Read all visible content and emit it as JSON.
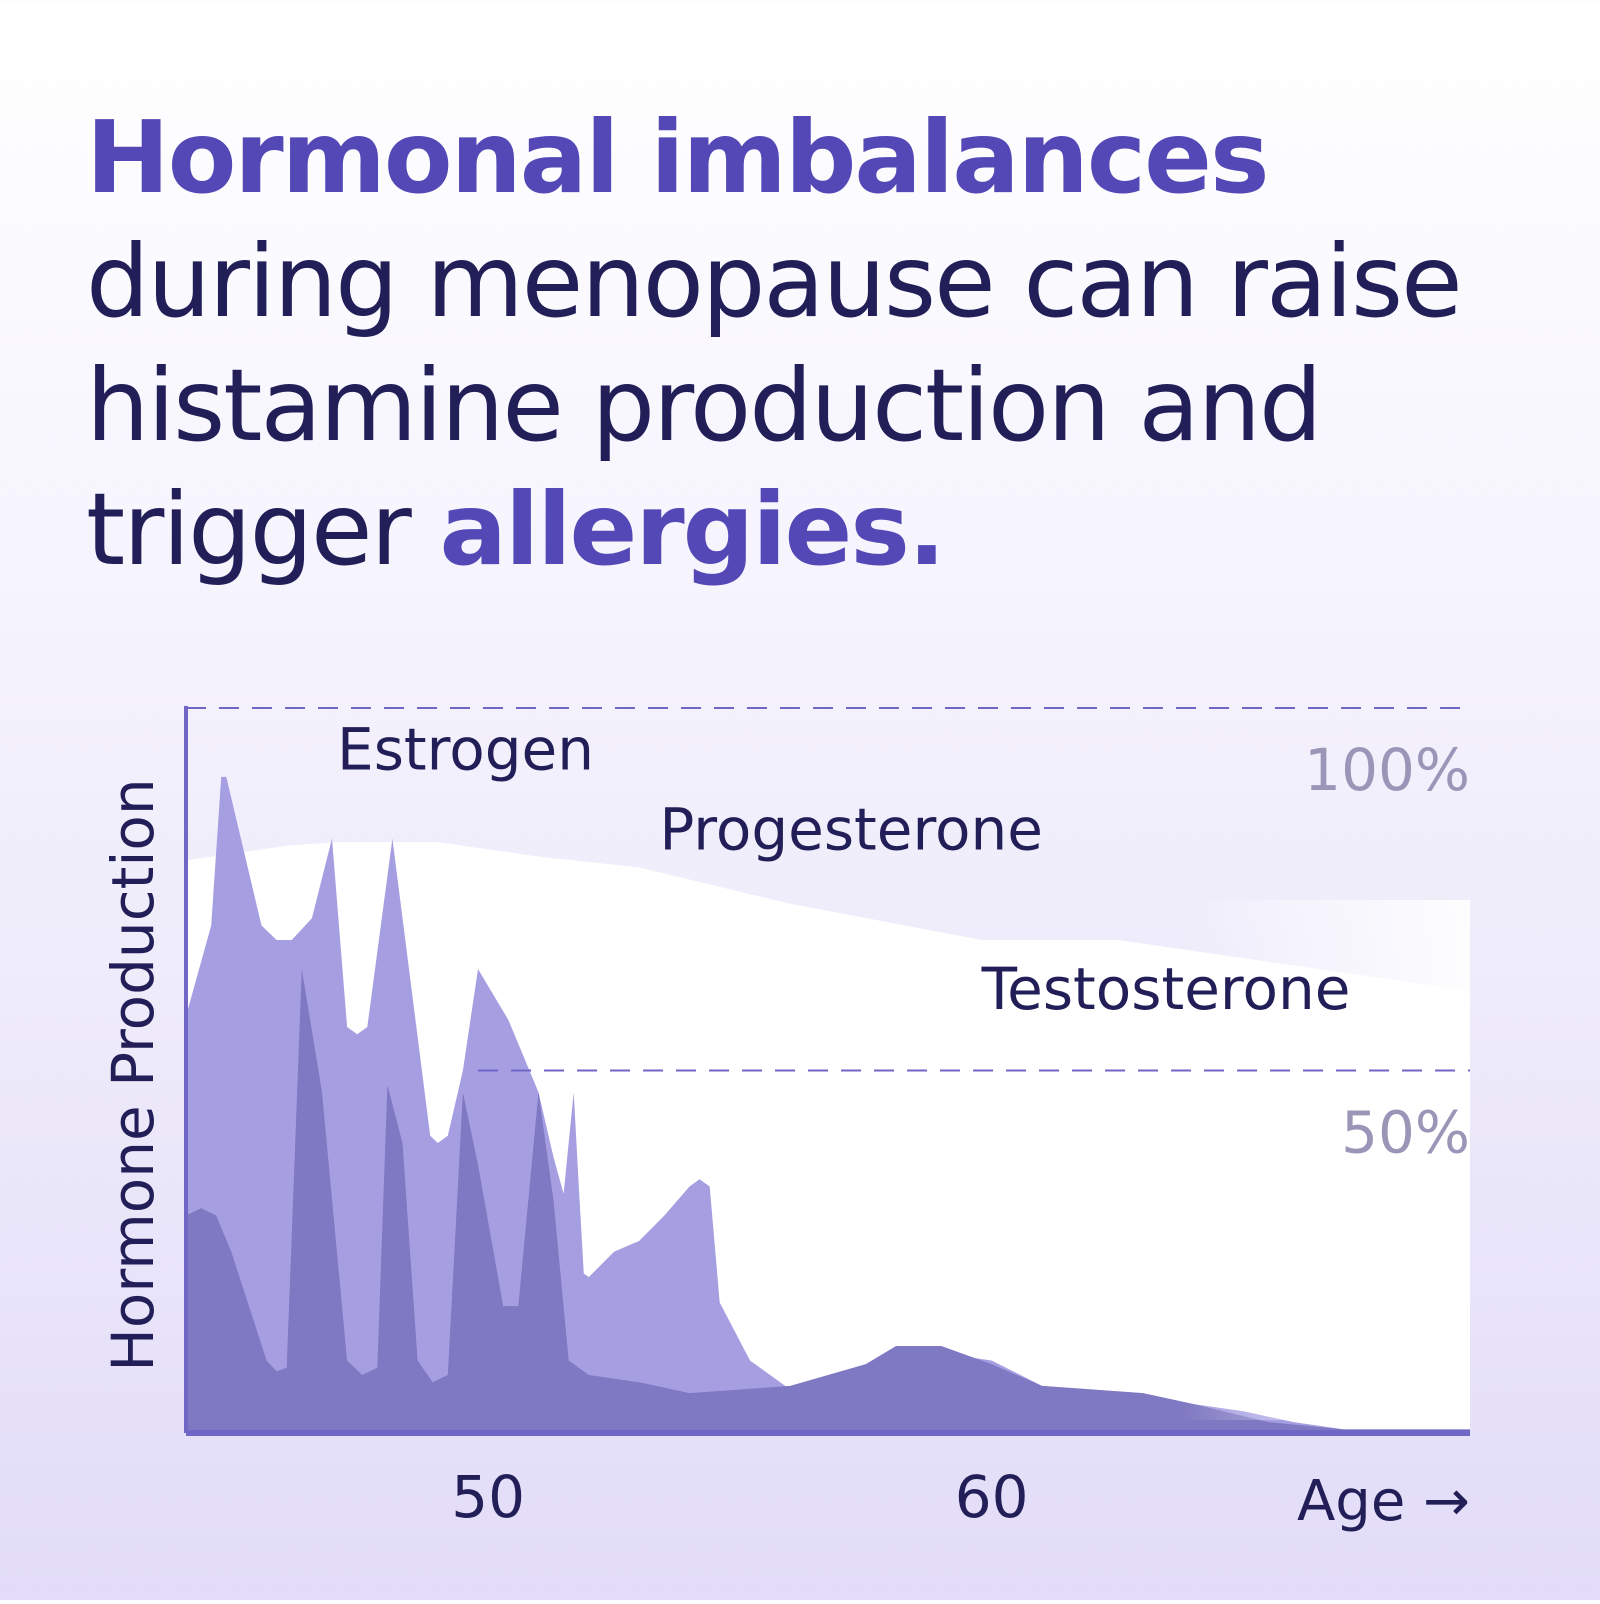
{
  "headline": {
    "line1": "Hormonal imbalances",
    "line2": "during menopause can raise",
    "line3": "histamine production and",
    "line4_prefix": "trigger ",
    "line4_accent": "allergies."
  },
  "colors": {
    "accent": "#5448b6",
    "dark_text": "#221f58",
    "progesterone_fill": "#ffffff",
    "estrogen_fill": "#a59fe2",
    "testosterone_fill": "#7f78c2",
    "axis": "#6f66c6",
    "reference_label": "#9b96b8"
  },
  "chart_data": {
    "type": "area",
    "xlabel": "Age →",
    "ylabel": "Hormone Production",
    "x_ticks": [
      {
        "x": 50,
        "label": "50"
      },
      {
        "x": 60,
        "label": "60"
      }
    ],
    "xlim": [
      44,
      69.5
    ],
    "ylim": [
      0,
      100
    ],
    "reference_lines": [
      {
        "y": 100,
        "label": "100%",
        "style": "dashed"
      },
      {
        "y": 50,
        "label": "50%",
        "style": "dashed"
      }
    ],
    "grid": false,
    "series": [
      {
        "name": "Progesterone",
        "label_at": [
          53.4,
          80.5
        ],
        "points": [
          [
            44,
            79
          ],
          [
            46,
            81
          ],
          [
            47,
            81.5
          ],
          [
            49,
            81.5
          ],
          [
            51,
            79.5
          ],
          [
            53,
            78
          ],
          [
            56,
            73
          ],
          [
            59.8,
            68
          ],
          [
            62.5,
            68
          ],
          [
            65,
            65.5
          ],
          [
            69.5,
            61
          ],
          [
            69.5,
            0
          ],
          [
            44,
            0
          ]
        ]
      },
      {
        "name": "Estrogen",
        "label_at": [
          47,
          91.5
        ],
        "points": [
          [
            44,
            57.5
          ],
          [
            44.5,
            70
          ],
          [
            44.7,
            90.5
          ],
          [
            44.8,
            90.5
          ],
          [
            45.5,
            70
          ],
          [
            45.8,
            68
          ],
          [
            46.1,
            68
          ],
          [
            46.5,
            71
          ],
          [
            46.9,
            82
          ],
          [
            47.2,
            56
          ],
          [
            47.4,
            55
          ],
          [
            47.6,
            56
          ],
          [
            48.1,
            82
          ],
          [
            48.85,
            41
          ],
          [
            49,
            40
          ],
          [
            49.2,
            41
          ],
          [
            49.5,
            50
          ],
          [
            49.8,
            64
          ],
          [
            50.4,
            57
          ],
          [
            51,
            47
          ],
          [
            51.3,
            38
          ],
          [
            51.5,
            33
          ],
          [
            51.7,
            47
          ],
          [
            51.8,
            34
          ],
          [
            51.9,
            22
          ],
          [
            52,
            21.5
          ],
          [
            52.5,
            25
          ],
          [
            53,
            26.5
          ],
          [
            53.5,
            30
          ],
          [
            54,
            34
          ],
          [
            54.2,
            35
          ],
          [
            54.4,
            34
          ],
          [
            54.6,
            18
          ],
          [
            55.2,
            10
          ],
          [
            56,
            6
          ],
          [
            58,
            8.5
          ],
          [
            59,
            11
          ],
          [
            60,
            10
          ],
          [
            61,
            6.5
          ],
          [
            63,
            5.5
          ],
          [
            64,
            4
          ],
          [
            65,
            3
          ],
          [
            66,
            1.5
          ],
          [
            67,
            0.5
          ],
          [
            69.5,
            0.5
          ],
          [
            69.5,
            0
          ],
          [
            44,
            0
          ]
        ]
      },
      {
        "name": "Testosterone",
        "label_at": [
          59.8,
          58.5
        ],
        "points": [
          [
            44,
            30
          ],
          [
            44.3,
            31
          ],
          [
            44.6,
            30
          ],
          [
            44.9,
            25
          ],
          [
            45.6,
            10
          ],
          [
            45.8,
            8.5
          ],
          [
            46,
            9
          ],
          [
            46.3,
            64
          ],
          [
            46.7,
            47
          ],
          [
            47.2,
            10
          ],
          [
            47.5,
            8
          ],
          [
            47.8,
            9
          ],
          [
            48,
            48
          ],
          [
            48.3,
            40
          ],
          [
            48.6,
            10
          ],
          [
            48.9,
            7
          ],
          [
            49.2,
            8
          ],
          [
            49.5,
            47
          ],
          [
            49.8,
            37
          ],
          [
            50.3,
            17.5
          ],
          [
            50.6,
            17.5
          ],
          [
            51,
            47
          ],
          [
            51.3,
            32
          ],
          [
            51.6,
            10
          ],
          [
            52,
            8
          ],
          [
            53,
            7
          ],
          [
            54,
            5.5
          ],
          [
            56,
            6.5
          ],
          [
            57.5,
            9.5
          ],
          [
            58.1,
            12
          ],
          [
            59,
            12
          ],
          [
            60,
            9.5
          ],
          [
            61,
            6.5
          ],
          [
            62,
            6
          ],
          [
            63,
            5.5
          ],
          [
            64,
            4
          ],
          [
            65.5,
            1.5
          ],
          [
            67,
            0.5
          ],
          [
            69.5,
            0.5
          ],
          [
            69.5,
            0
          ],
          [
            44,
            0
          ]
        ]
      }
    ]
  }
}
